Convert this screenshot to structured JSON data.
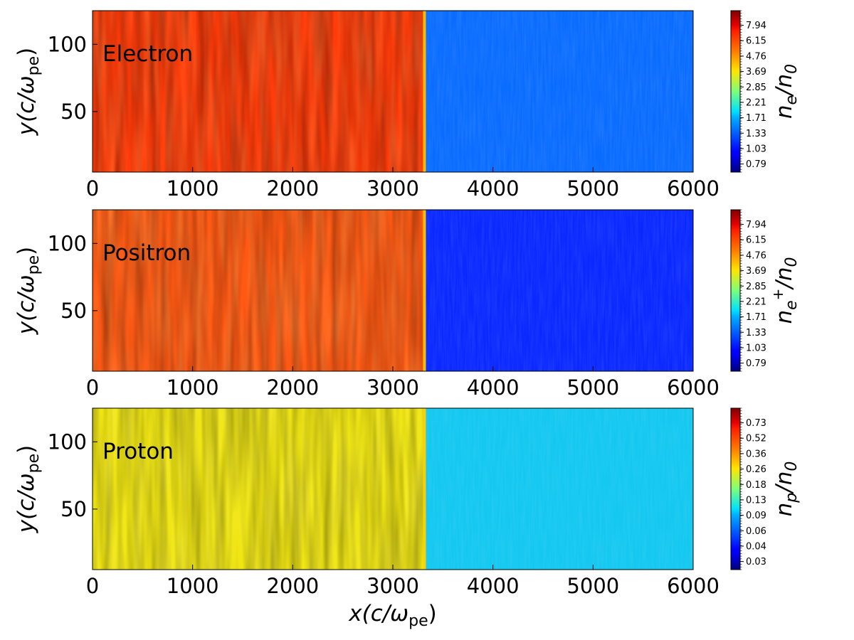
{
  "chart_data": [
    {
      "type": "heatmap",
      "species_label": "Electron",
      "xlabel": "",
      "ylabel_main": "y(c/ω",
      "ylabel_sub": "pe",
      "ylabel_close": ")",
      "xlim": [
        0,
        6000
      ],
      "ylim": [
        5,
        125
      ],
      "xticks": [
        0,
        1000,
        2000,
        3000,
        4000,
        5000,
        6000
      ],
      "yticks": [
        50,
        100
      ],
      "shock_x": 3330,
      "downstream_color": "#ff3c0a",
      "upstream_color": "#0a6cff",
      "colorbar": {
        "label_main": "n",
        "label_sub": "e",
        "label_sup": "",
        "label_tail": "/n",
        "label_tail_sub": "0",
        "ticks": [
          "0.79",
          "1.03",
          "1.33",
          "1.71",
          "2.21",
          "2.85",
          "3.69",
          "4.76",
          "6.15",
          "7.94"
        ]
      }
    },
    {
      "type": "heatmap",
      "species_label": "Positron",
      "xlabel": "",
      "ylabel_main": "y(c/ω",
      "ylabel_sub": "pe",
      "ylabel_close": ")",
      "xlim": [
        0,
        6000
      ],
      "ylim": [
        5,
        125
      ],
      "xticks": [
        0,
        1000,
        2000,
        3000,
        4000,
        5000,
        6000
      ],
      "yticks": [
        50,
        100
      ],
      "shock_x": 3330,
      "downstream_color": "#ff5a14",
      "upstream_color": "#0a28ff",
      "colorbar": {
        "label_main": "n",
        "label_sub": "e",
        "label_sup": "+",
        "label_tail": "/n",
        "label_tail_sub": "0",
        "ticks": [
          "0.79",
          "1.03",
          "1.33",
          "1.71",
          "2.21",
          "2.85",
          "3.69",
          "4.76",
          "6.15",
          "7.94"
        ]
      }
    },
    {
      "type": "heatmap",
      "species_label": "Proton",
      "xlabel_main": "x(c/ω",
      "xlabel_sub": "pe",
      "xlabel_close": ")",
      "ylabel_main": "y(c/ω",
      "ylabel_sub": "pe",
      "ylabel_close": ")",
      "xlim": [
        0,
        6000
      ],
      "ylim": [
        5,
        125
      ],
      "xticks": [
        0,
        1000,
        2000,
        3000,
        4000,
        5000,
        6000
      ],
      "yticks": [
        50,
        100
      ],
      "shock_x": 3330,
      "downstream_color": "#f0e614",
      "upstream_color": "#14c8f0",
      "colorbar": {
        "label_main": "n",
        "label_sub": "p",
        "label_sup": "",
        "label_tail": "/n",
        "label_tail_sub": "0",
        "ticks": [
          "0.03",
          "0.04",
          "0.06",
          "0.09",
          "0.13",
          "0.18",
          "0.26",
          "0.36",
          "0.52",
          "0.73"
        ]
      }
    }
  ]
}
